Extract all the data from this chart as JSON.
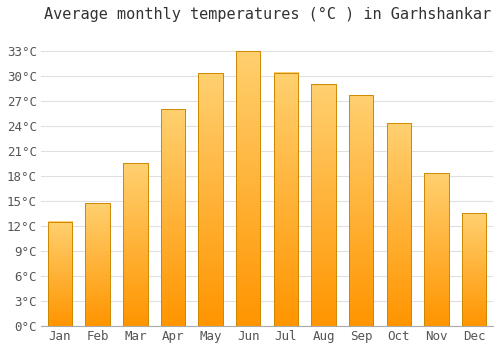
{
  "title": "Average monthly temperatures (°C ) in Garhshankar",
  "months": [
    "Jan",
    "Feb",
    "Mar",
    "Apr",
    "May",
    "Jun",
    "Jul",
    "Aug",
    "Sep",
    "Oct",
    "Nov",
    "Dec"
  ],
  "temperatures": [
    12.5,
    14.7,
    19.5,
    26.0,
    30.3,
    33.0,
    30.4,
    29.0,
    27.7,
    24.3,
    18.3,
    13.5
  ],
  "bar_color_main": "#FFA500",
  "bar_color_light": "#FFD060",
  "bar_edge_color": "#CC8800",
  "background_color": "#FFFFFF",
  "grid_color": "#E0E0E0",
  "yticks": [
    0,
    3,
    6,
    9,
    12,
    15,
    18,
    21,
    24,
    27,
    30,
    33
  ],
  "ylim": [
    0,
    35.5
  ],
  "title_fontsize": 11,
  "tick_fontsize": 9,
  "font_family": "monospace"
}
